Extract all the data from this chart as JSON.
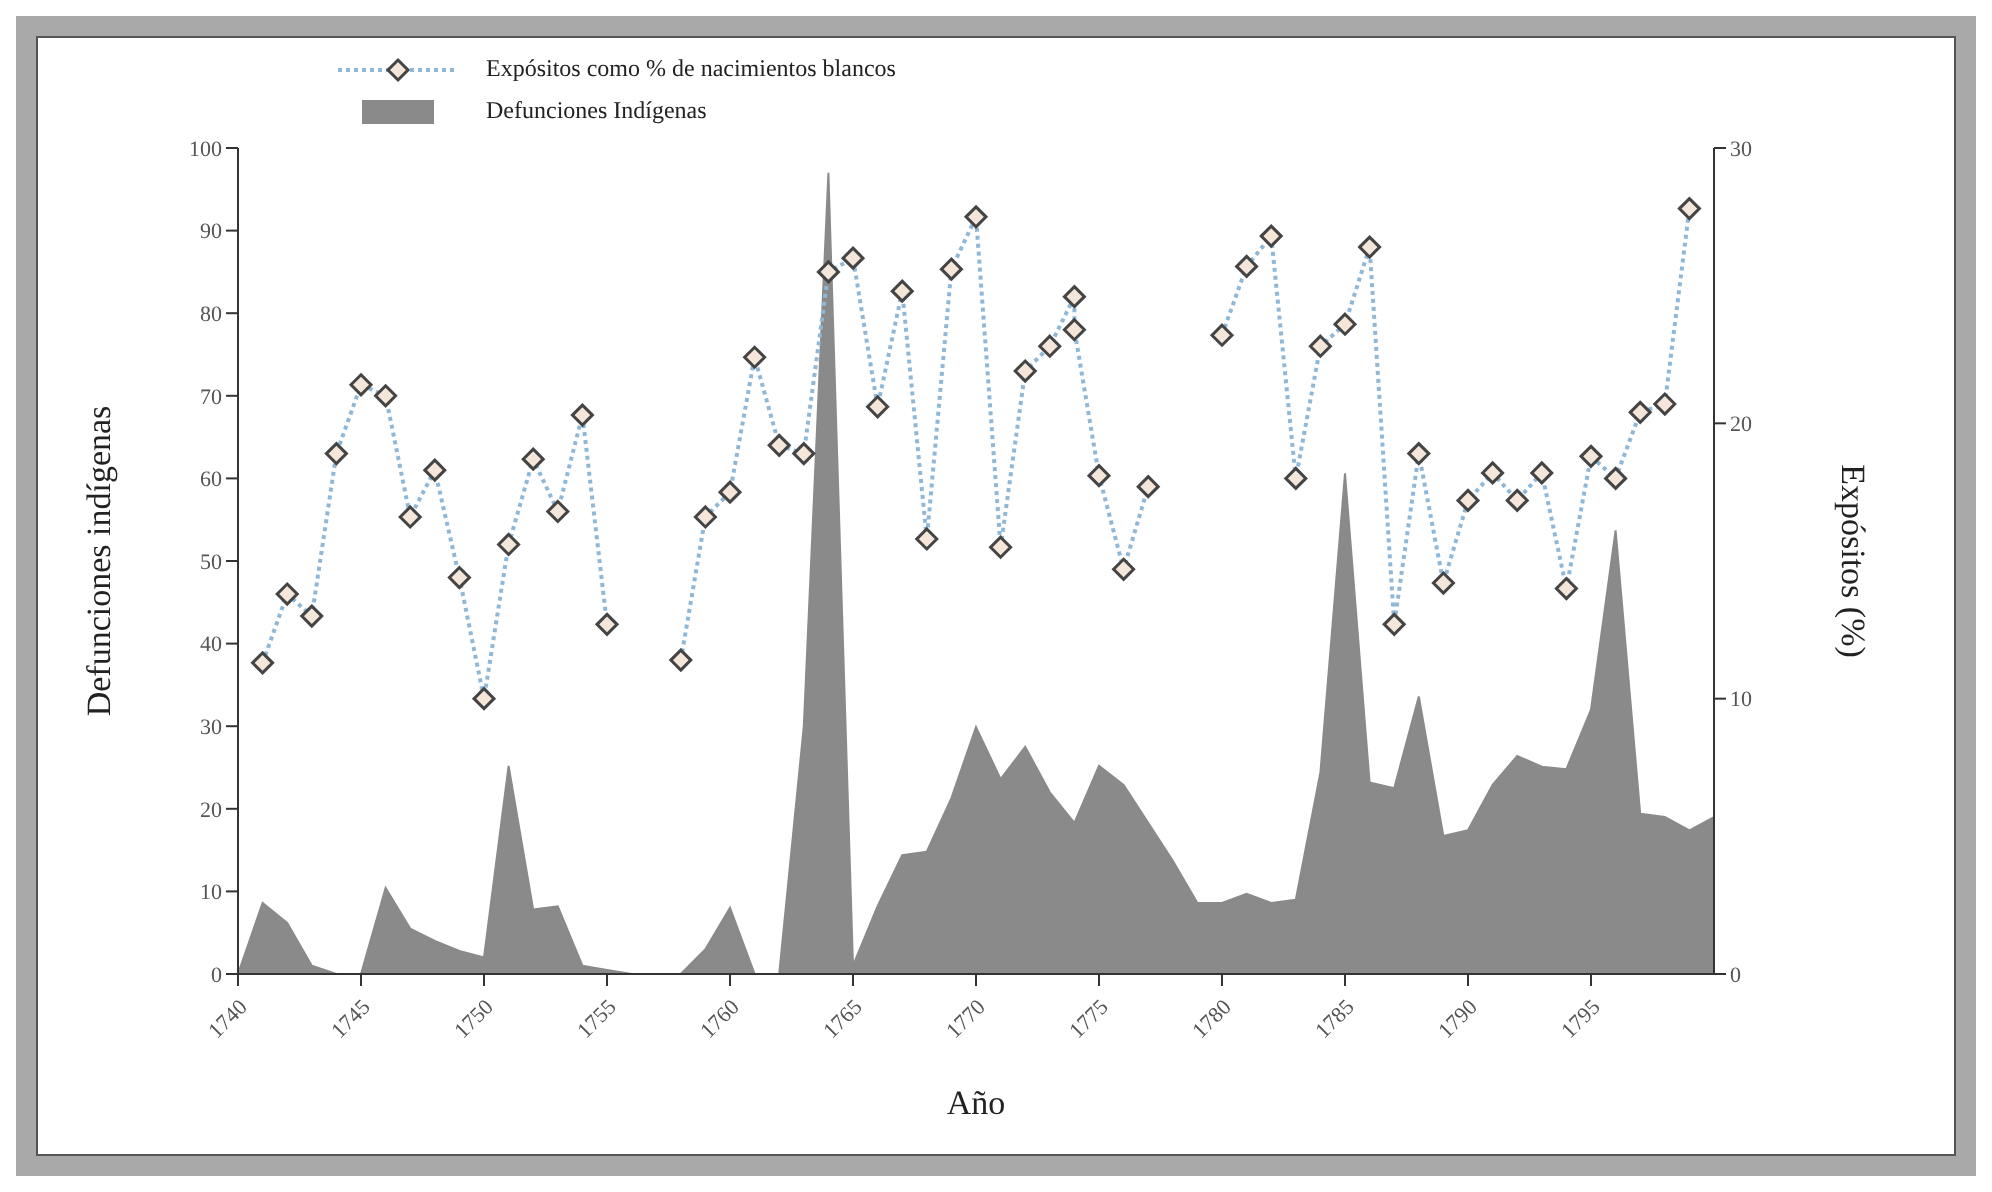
{
  "chart_data": {
    "type": "line",
    "xlabel": "Año",
    "ylabel": "Defunciones indígenas",
    "y2label": "Expósitos (%)",
    "legend": "top left",
    "grid": false,
    "xlim": [
      1740,
      1800
    ],
    "xticks": [
      1740,
      1745,
      1750,
      1755,
      1760,
      1765,
      1770,
      1775,
      1780,
      1785,
      1790,
      1795
    ],
    "ylim": [
      0,
      100
    ],
    "yticks": [
      0,
      10,
      20,
      30,
      40,
      50,
      60,
      70,
      80,
      90,
      100
    ],
    "y2lim": [
      0,
      30
    ],
    "y2ticks": [
      0,
      10,
      20,
      30
    ],
    "series": [
      {
        "name": "Expósitos como % de nacimientos blancos",
        "axis": "y2",
        "color": "#8fb8d8",
        "marker": "diamond",
        "line_style": "dotted",
        "x": [
          1741,
          1742,
          1743,
          1744,
          1745,
          1746,
          1747,
          1748,
          1749,
          1750,
          1751,
          1752,
          1753,
          1754,
          1755,
          1756,
          1757,
          1758,
          1759,
          1760,
          1761,
          1762,
          1763,
          1764,
          1765,
          1766,
          1767,
          1768,
          1769,
          1770,
          1771,
          1772,
          1773,
          1774,
          1774,
          1775,
          1776,
          1777,
          1778,
          1779,
          1780,
          1781,
          1782,
          1783,
          1784,
          1785,
          1786,
          1787,
          1788,
          1789,
          1790,
          1791,
          1792,
          1793,
          1794,
          1795,
          1796,
          1797,
          1798,
          1799
        ],
        "values": [
          11.3,
          13.8,
          13.0,
          18.9,
          21.4,
          21.0,
          16.6,
          18.3,
          14.4,
          10.0,
          15.6,
          18.7,
          16.8,
          20.3,
          12.7,
          null,
          null,
          11.4,
          16.6,
          17.5,
          22.4,
          19.2,
          18.9,
          25.5,
          26.0,
          20.6,
          24.8,
          15.8,
          25.6,
          27.5,
          15.5,
          21.9,
          22.8,
          24.6,
          23.4,
          18.1,
          14.7,
          17.7,
          null,
          null,
          23.2,
          25.7,
          26.8,
          18.0,
          22.8,
          23.6,
          26.4,
          12.7,
          18.9,
          14.2,
          17.2,
          18.2,
          17.2,
          18.2,
          14.0,
          18.8,
          18.0,
          20.4,
          20.7,
          27.8
        ]
      },
      {
        "name": "Defunciones Indígenas",
        "type": "area",
        "color": "#8a8a8a",
        "x": [
          1740,
          1741,
          1742,
          1743,
          1744,
          1745,
          1746,
          1747,
          1748,
          1749,
          1750,
          1751,
          1752,
          1753,
          1754,
          1755,
          1756,
          1757,
          1758,
          1759,
          1760,
          1761,
          1762,
          1763,
          1764,
          1765,
          1766,
          1767,
          1768,
          1769,
          1770,
          1771,
          1772,
          1773,
          1774,
          1775,
          1776,
          1777,
          1778,
          1779,
          1780,
          1781,
          1782,
          1783,
          1784,
          1785,
          1786,
          1787,
          1788,
          1789,
          1790,
          1791,
          1792,
          1793,
          1794,
          1795,
          1796,
          1797,
          1798,
          1799,
          1800
        ],
        "values": [
          0,
          8.6,
          6.2,
          1,
          0,
          0,
          10.4,
          5.5,
          4,
          2.8,
          2,
          25.2,
          7.8,
          8.2,
          1,
          0.5,
          0,
          0,
          0,
          3,
          8,
          0,
          0,
          30,
          97,
          1,
          8.2,
          14.4,
          14.8,
          21.3,
          29.9,
          23.6,
          27.5,
          22,
          18.3,
          25.2,
          22.9,
          18.3,
          13.7,
          8.6,
          8.6,
          9.7,
          8.6,
          9,
          24.4,
          60.6,
          23.2,
          22.5,
          33.6,
          16.7,
          17.4,
          22.9,
          26.4,
          25.1,
          24.8,
          32,
          53.7,
          19.4,
          19,
          17.4,
          19
        ]
      }
    ]
  }
}
